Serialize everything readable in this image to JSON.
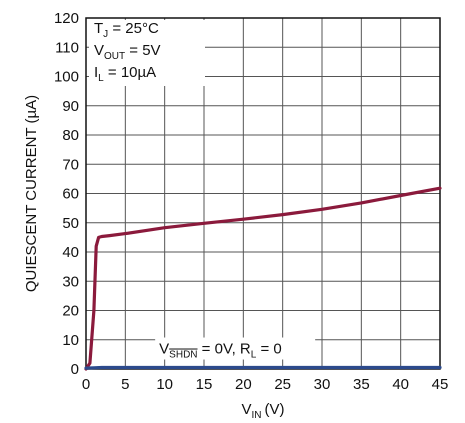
{
  "chart_data": {
    "type": "line",
    "xlabel": "V",
    "xlabel_sub": "IN",
    "xlabel_unit": "(V)",
    "ylabel": "QUIESCENT CURRENT (µA)",
    "xlim": [
      0,
      45
    ],
    "ylim": [
      0,
      120
    ],
    "xticks": [
      "0",
      "5",
      "10",
      "15",
      "20",
      "25",
      "30",
      "35",
      "40",
      "45"
    ],
    "yticks": [
      "0",
      "10",
      "20",
      "30",
      "40",
      "50",
      "60",
      "70",
      "80",
      "90",
      "100",
      "110",
      "120"
    ],
    "xtick_values": [
      0,
      5,
      10,
      15,
      20,
      25,
      30,
      35,
      40,
      45
    ],
    "ytick_values": [
      0,
      10,
      20,
      30,
      40,
      50,
      60,
      70,
      80,
      90,
      100,
      110,
      120
    ],
    "grid": true,
    "conditions": {
      "line1": {
        "pre": "T",
        "sub": "J",
        "post": " = 25°C"
      },
      "line2": {
        "pre": "V",
        "sub": "OUT",
        "post": " = 5V"
      },
      "line3": {
        "pre": "I",
        "sub": "L",
        "post": " = 10µA"
      }
    },
    "shutdown_label": {
      "pre": "V",
      "sub": "SHDN",
      "mid": " = 0V, R",
      "sub2": "L",
      "post": " = 0"
    },
    "series": [
      {
        "color": "#8b1a3c",
        "x": [
          0,
          0.5,
          1.0,
          1.3,
          1.6,
          2.0,
          3,
          5,
          10,
          15,
          20,
          25,
          30,
          35,
          40,
          45
        ],
        "y": [
          0,
          2,
          20,
          42,
          45,
          45.3,
          45.6,
          46.3,
          48.3,
          49.8,
          51.2,
          52.8,
          54.6,
          56.8,
          59.3,
          61.8
        ]
      },
      {
        "color": "#2c4a8c",
        "x": [
          0,
          1,
          2,
          5,
          10,
          15,
          20,
          25,
          30,
          35,
          40,
          45
        ],
        "y": [
          0.3,
          0.4,
          0.5,
          0.5,
          0.5,
          0.5,
          0.5,
          0.5,
          0.5,
          0.5,
          0.5,
          0.5
        ]
      }
    ]
  }
}
